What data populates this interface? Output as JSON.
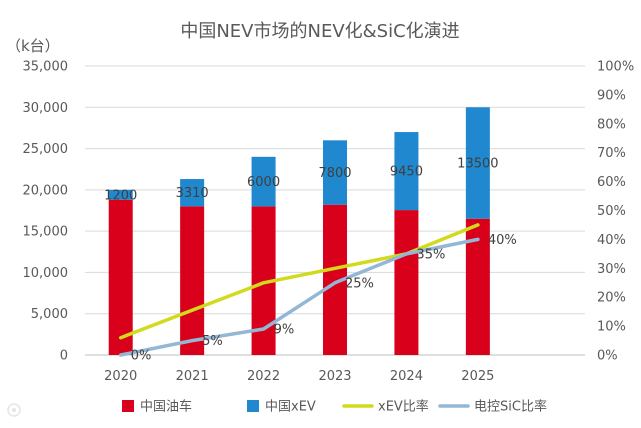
{
  "chart_data": {
    "type": "bar",
    "title": "中国NEV市场的NEV化&SiC化演进",
    "ylabel": "（k台）",
    "categories": [
      "2020",
      "2021",
      "2022",
      "2023",
      "2024",
      "2025"
    ],
    "stacked": true,
    "ylim": [
      0,
      35000
    ],
    "yticks": [
      "0",
      "5,000",
      "10,000",
      "15,000",
      "20,000",
      "25,000",
      "30,000",
      "35,000"
    ],
    "y2lim": [
      0,
      100
    ],
    "y2ticks": [
      "0%",
      "10%",
      "20%",
      "30%",
      "40%",
      "50%",
      "60%",
      "70%",
      "80%",
      "90%",
      "100%"
    ],
    "grid": true,
    "legend": "bottom",
    "series": [
      {
        "name": "中国油车",
        "type": "bar",
        "axis": "left",
        "color": "#d9001b",
        "values": [
          18800,
          18000,
          18000,
          18200,
          17550,
          16500
        ]
      },
      {
        "name": "中国xEV",
        "type": "bar",
        "axis": "left",
        "color": "#1f88cf",
        "values": [
          1200,
          3310,
          6000,
          7800,
          9450,
          13500
        ],
        "labels": [
          "1200",
          "3310",
          "6000",
          "7800",
          "9450",
          "13500"
        ]
      },
      {
        "name": "xEV比率",
        "type": "line",
        "axis": "right",
        "color": "#d2da1e",
        "values": [
          6,
          15.5,
          25,
          30,
          35,
          45
        ]
      },
      {
        "name": "电控SiC比率",
        "type": "line",
        "axis": "right",
        "color": "#93b7d5",
        "values": [
          0,
          5,
          9,
          25,
          35,
          40
        ],
        "labels": [
          "0%",
          "5%",
          "9%",
          "25%",
          "35%",
          "40%"
        ]
      }
    ]
  }
}
